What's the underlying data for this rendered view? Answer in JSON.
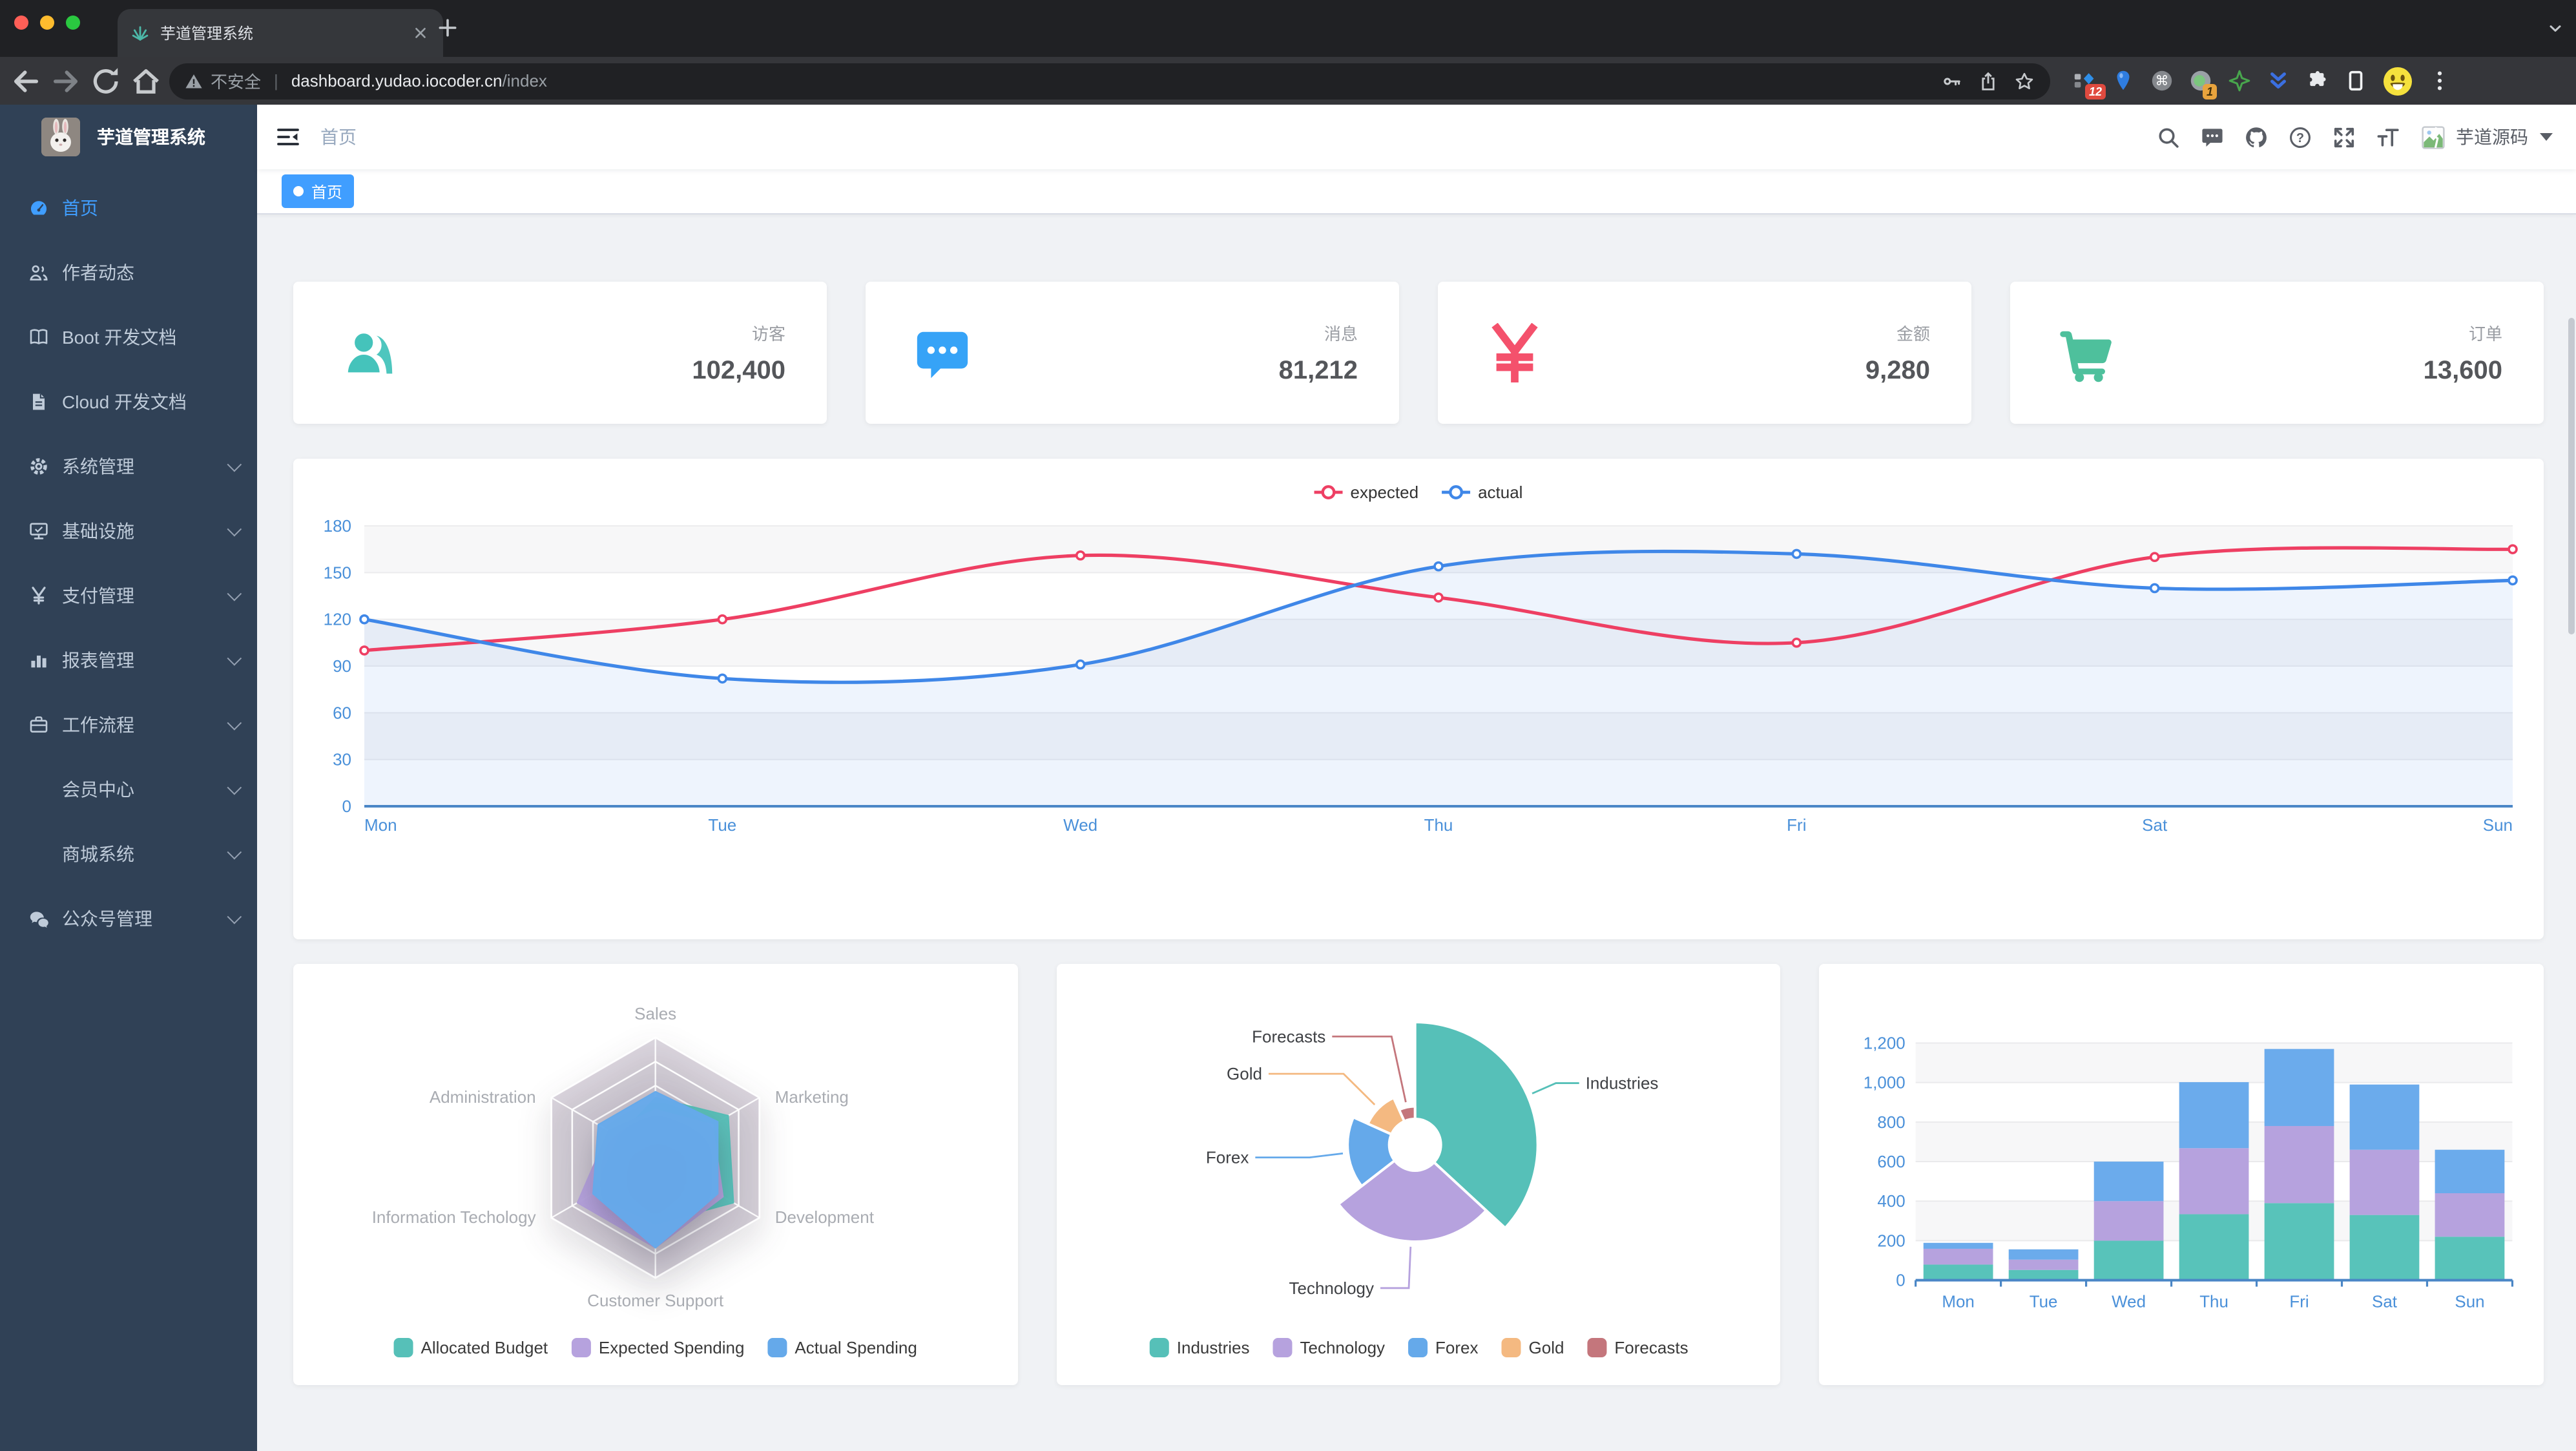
{
  "browser": {
    "tab": {
      "title": "芋道管理系统"
    },
    "url": {
      "security": "不安全",
      "host": "dashboard.yudao.iocoder.cn",
      "path": "/index"
    },
    "extensions": {
      "badge_a": "12",
      "badge_b": "1"
    }
  },
  "sidebar": {
    "logo_title": "芋道管理系统",
    "items": [
      {
        "label": "首页",
        "icon": "dashboard",
        "active": true,
        "expandable": false,
        "child": false
      },
      {
        "label": "作者动态",
        "icon": "people",
        "active": false,
        "expandable": false,
        "child": false
      },
      {
        "label": "Boot 开发文档",
        "icon": "book",
        "active": false,
        "expandable": false,
        "child": false
      },
      {
        "label": "Cloud 开发文档",
        "icon": "doc",
        "active": false,
        "expandable": false,
        "child": false
      },
      {
        "label": "系统管理",
        "icon": "gear",
        "active": false,
        "expandable": true,
        "child": false
      },
      {
        "label": "基础设施",
        "icon": "monitor",
        "active": false,
        "expandable": true,
        "child": false
      },
      {
        "label": "支付管理",
        "icon": "yen",
        "active": false,
        "expandable": true,
        "child": false
      },
      {
        "label": "报表管理",
        "icon": "chart",
        "active": false,
        "expandable": true,
        "child": false
      },
      {
        "label": "工作流程",
        "icon": "briefcase",
        "active": false,
        "expandable": true,
        "child": false
      },
      {
        "label": "会员中心",
        "icon": "",
        "active": false,
        "expandable": true,
        "child": true
      },
      {
        "label": "商城系统",
        "icon": "",
        "active": false,
        "expandable": true,
        "child": true
      },
      {
        "label": "公众号管理",
        "icon": "wechat",
        "active": false,
        "expandable": true,
        "child": false
      }
    ]
  },
  "navbar": {
    "breadcrumb": "首页",
    "user": "芋道源码"
  },
  "tags": [
    {
      "label": "首页",
      "active": true
    }
  ],
  "stat_cards": [
    {
      "label": "访客",
      "value": "102,400",
      "icon": "stat-people",
      "color": "#45c3bb"
    },
    {
      "label": "消息",
      "value": "81,212",
      "icon": "stat-message",
      "color": "#36a3f7"
    },
    {
      "label": "金额",
      "value": "9,280",
      "icon": "stat-money",
      "color": "#f4516c"
    },
    {
      "label": "订单",
      "value": "13,600",
      "icon": "stat-cart",
      "color": "#4ec09c"
    }
  ],
  "chart_data": [
    {
      "id": "line",
      "type": "line",
      "categories": [
        "Mon",
        "Tue",
        "Wed",
        "Thu",
        "Fri",
        "Sat",
        "Sun"
      ],
      "series": [
        {
          "name": "expected",
          "color": "#ee3f63",
          "area": false,
          "values": [
            100,
            120,
            161,
            134,
            105,
            160,
            165
          ]
        },
        {
          "name": "actual",
          "color": "#3f87e8",
          "area": true,
          "values": [
            120,
            82,
            91,
            154,
            162,
            140,
            145
          ]
        }
      ],
      "ylim": [
        0,
        180
      ],
      "ystep": 30,
      "grid": true,
      "legend_position": "top"
    },
    {
      "id": "radar",
      "type": "radar",
      "indicators": [
        {
          "name": "Sales",
          "max": 10000
        },
        {
          "name": "Marketing",
          "max": 20000
        },
        {
          "name": "Development",
          "max": 20000
        },
        {
          "name": "Customer Support",
          "max": 20000
        },
        {
          "name": "Information Techology",
          "max": 20000
        },
        {
          "name": "Administration",
          "max": 20000
        }
      ],
      "series": [
        {
          "name": "Allocated Budget",
          "color": "#56c0b8",
          "values": [
            5000,
            14000,
            15000,
            11000,
            12000,
            7000
          ]
        },
        {
          "name": "Expected Spending",
          "color": "#b6a2de",
          "values": [
            4000,
            11000,
            13000,
            15000,
            15000,
            9000
          ]
        },
        {
          "name": "Actual Spending",
          "color": "#65a9ea",
          "values": [
            5500,
            12000,
            12000,
            15000,
            12000,
            11000
          ]
        }
      ],
      "legend_position": "bottom"
    },
    {
      "id": "pie",
      "type": "pie",
      "rose": true,
      "inner_radius": 15,
      "outer_radius": 95,
      "slices": [
        {
          "name": "Industries",
          "value": 320,
          "color": "#56c0b8"
        },
        {
          "name": "Technology",
          "value": 240,
          "color": "#b6a2de"
        },
        {
          "name": "Forex",
          "value": 149,
          "color": "#65a9ea"
        },
        {
          "name": "Gold",
          "value": 100,
          "color": "#f4b981"
        },
        {
          "name": "Forecasts",
          "value": 59,
          "color": "#c4767c"
        }
      ],
      "legend_position": "bottom"
    },
    {
      "id": "bar",
      "type": "bar",
      "stacked": true,
      "categories": [
        "Mon",
        "Tue",
        "Wed",
        "Thu",
        "Fri",
        "Sat",
        "Sun"
      ],
      "series": [
        {
          "name": "",
          "color": "#58c3ba",
          "values": [
            79,
            52,
            200,
            334,
            390,
            330,
            220
          ]
        },
        {
          "name": "",
          "color": "#b6a2de",
          "values": [
            80,
            52,
            200,
            334,
            390,
            330,
            220
          ]
        },
        {
          "name": "",
          "color": "#6babec",
          "values": [
            30,
            52,
            200,
            334,
            390,
            330,
            220
          ]
        }
      ],
      "ylim": [
        0,
        1200
      ],
      "ystep": 200
    }
  ]
}
